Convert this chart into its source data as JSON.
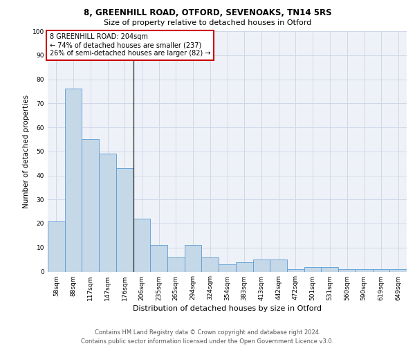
{
  "title1": "8, GREENHILL ROAD, OTFORD, SEVENOAKS, TN14 5RS",
  "title2": "Size of property relative to detached houses in Otford",
  "xlabel": "Distribution of detached houses by size in Otford",
  "ylabel": "Number of detached properties",
  "categories": [
    "58sqm",
    "88sqm",
    "117sqm",
    "147sqm",
    "176sqm",
    "206sqm",
    "235sqm",
    "265sqm",
    "294sqm",
    "324sqm",
    "354sqm",
    "383sqm",
    "413sqm",
    "442sqm",
    "472sqm",
    "501sqm",
    "531sqm",
    "560sqm",
    "590sqm",
    "619sqm",
    "649sqm"
  ],
  "values": [
    21,
    76,
    55,
    49,
    43,
    22,
    11,
    6,
    11,
    6,
    3,
    4,
    5,
    5,
    1,
    2,
    2,
    1,
    1,
    1,
    1
  ],
  "bar_color": "#c5d8e8",
  "bar_edge_color": "#5b9bd5",
  "subject_label": "8 GREENHILL ROAD: 204sqm",
  "annotation_line1": "← 74% of detached houses are smaller (237)",
  "annotation_line2": "26% of semi-detached houses are larger (82) →",
  "annotation_box_color": "#ffffff",
  "annotation_box_edge": "#cc0000",
  "ylim": [
    0,
    100
  ],
  "yticks": [
    0,
    10,
    20,
    30,
    40,
    50,
    60,
    70,
    80,
    90,
    100
  ],
  "grid_color": "#d0d8e8",
  "bg_color": "#eef2f8",
  "title1_fontsize": 8.5,
  "title2_fontsize": 8.0,
  "ylabel_fontsize": 7.5,
  "xlabel_fontsize": 8.0,
  "tick_fontsize": 6.5,
  "ann_fontsize": 7.0,
  "footer_fontsize": 6.0,
  "footer": "Contains HM Land Registry data © Crown copyright and database right 2024.\nContains public sector information licensed under the Open Government Licence v3.0."
}
